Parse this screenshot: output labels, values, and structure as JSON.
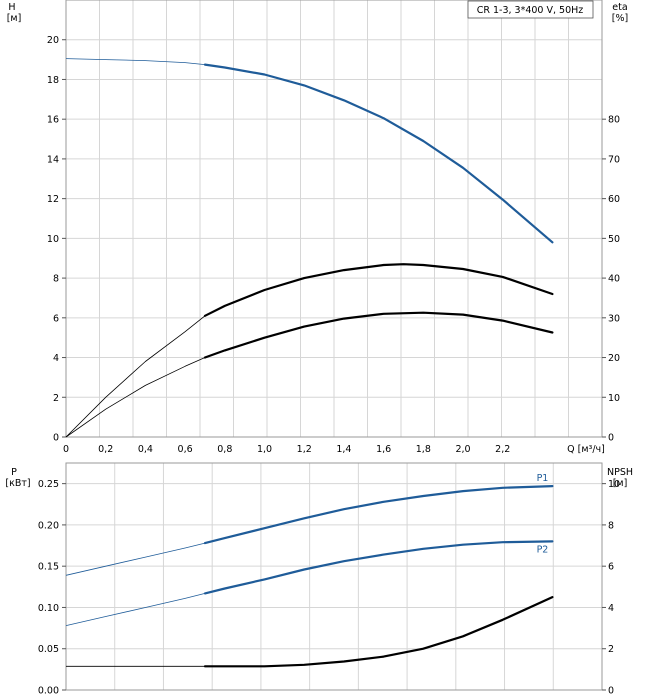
{
  "chart_data": [
    {
      "type": "line",
      "panel": "upper",
      "legend": "CR 1-3, 3*400 V, 50Hz",
      "legend_position": "top-right",
      "grid": true,
      "xlabel": "Q [м³/ч]",
      "xlim": [
        0,
        2.7
      ],
      "x_ticks": [
        "0",
        "0,2",
        "0,4",
        "0,6",
        "0,8",
        "1,0",
        "1,2",
        "1,4",
        "1,6",
        "1,8",
        "2,0",
        "2,2"
      ],
      "y_left": {
        "label_line1": "H",
        "label_line2": "[м]",
        "ylim": [
          0,
          22
        ],
        "ticks": [
          "0",
          "2",
          "4",
          "6",
          "8",
          "10",
          "12",
          "14",
          "16",
          "18",
          "20"
        ]
      },
      "y_right": {
        "label_line1": "eta",
        "label_line2": "[%]",
        "ylim": [
          0,
          110
        ],
        "ticks": [
          "0",
          "10",
          "20",
          "30",
          "40",
          "50",
          "60",
          "70",
          "80"
        ]
      },
      "operating_range_start": 0.7,
      "series": [
        {
          "axis": "left",
          "color": "#1f5c99",
          "x": [
            0,
            0.2,
            0.4,
            0.6,
            0.7,
            0.8,
            1.0,
            1.2,
            1.4,
            1.6,
            1.8,
            2.0,
            2.2,
            2.45
          ],
          "values": [
            19.05,
            19.0,
            18.95,
            18.85,
            18.75,
            18.6,
            18.25,
            17.7,
            16.95,
            16.05,
            14.9,
            13.55,
            11.95,
            9.8
          ]
        },
        {
          "axis": "right",
          "color": "#000000",
          "x": [
            0,
            0.2,
            0.4,
            0.6,
            0.7,
            0.8,
            1.0,
            1.2,
            1.4,
            1.6,
            1.7,
            1.8,
            2.0,
            2.2,
            2.45
          ],
          "values": [
            0,
            10,
            19,
            26.5,
            30.5,
            33,
            37,
            40,
            42,
            43.3,
            43.5,
            43.3,
            42.3,
            40.3,
            36
          ]
        },
        {
          "axis": "right",
          "color": "#000000",
          "x": [
            0,
            0.2,
            0.4,
            0.6,
            0.7,
            0.8,
            1.0,
            1.2,
            1.4,
            1.6,
            1.8,
            2.0,
            2.2,
            2.45
          ],
          "values": [
            0,
            7,
            13,
            17.8,
            20,
            21.8,
            25,
            27.8,
            29.8,
            31,
            31.3,
            30.8,
            29.3,
            26.3
          ]
        }
      ]
    },
    {
      "type": "line",
      "panel": "lower",
      "grid": true,
      "xlim": [
        0,
        2.7
      ],
      "y_left": {
        "label_line1": "P",
        "label_line2": "[кВт]",
        "ylim": [
          0,
          0.275
        ],
        "ticks": [
          "0.00",
          "0.05",
          "0.10",
          "0.15",
          "0.20",
          "0.25"
        ]
      },
      "y_right": {
        "label_line1": "NPSH",
        "label_line2": "[м]",
        "ylim": [
          0,
          11
        ],
        "ticks": [
          "0",
          "2",
          "4",
          "6",
          "8",
          "10"
        ]
      },
      "operating_range_start": 0.7,
      "series": [
        {
          "name": "P1",
          "axis": "left",
          "color": "#1f5c99",
          "x": [
            0,
            0.2,
            0.4,
            0.6,
            0.7,
            0.8,
            1.0,
            1.2,
            1.4,
            1.6,
            1.8,
            2.0,
            2.2,
            2.45
          ],
          "values": [
            0.139,
            0.15,
            0.161,
            0.172,
            0.178,
            0.184,
            0.196,
            0.208,
            0.219,
            0.228,
            0.235,
            0.241,
            0.245,
            0.247
          ]
        },
        {
          "name": "P2",
          "axis": "left",
          "color": "#1f5c99",
          "x": [
            0,
            0.2,
            0.4,
            0.6,
            0.7,
            0.8,
            1.0,
            1.2,
            1.4,
            1.6,
            1.8,
            2.0,
            2.2,
            2.45
          ],
          "values": [
            0.078,
            0.089,
            0.1,
            0.111,
            0.117,
            0.123,
            0.134,
            0.146,
            0.156,
            0.164,
            0.171,
            0.176,
            0.179,
            0.18
          ]
        },
        {
          "axis": "right",
          "color": "#000000",
          "x": [
            0,
            0.2,
            0.4,
            0.6,
            0.7,
            0.8,
            1.0,
            1.2,
            1.4,
            1.6,
            1.8,
            2.0,
            2.2,
            2.45
          ],
          "values": [
            1.15,
            1.15,
            1.15,
            1.15,
            1.15,
            1.15,
            1.15,
            1.22,
            1.38,
            1.62,
            2.0,
            2.6,
            3.4,
            4.5
          ]
        }
      ]
    }
  ]
}
